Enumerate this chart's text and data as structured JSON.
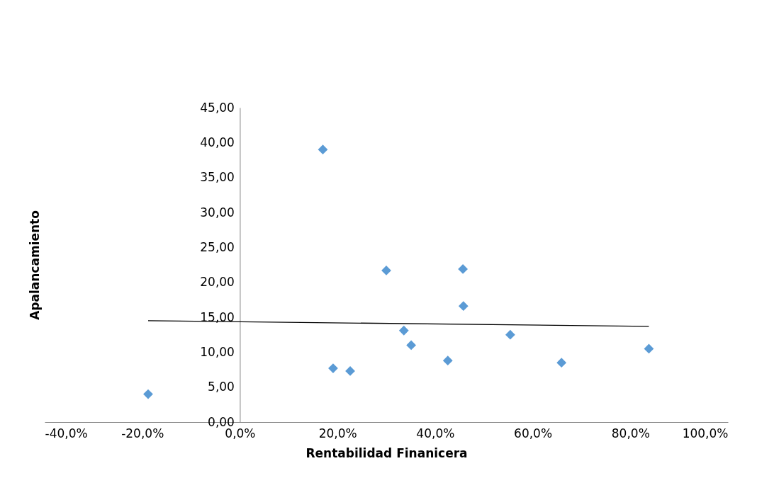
{
  "chart_data": {
    "type": "scatter",
    "xlabel": "Rentabilidad Finanicera",
    "ylabel": "Apalancamiento",
    "xlim": [
      -40,
      100
    ],
    "ylim": [
      0,
      45
    ],
    "xticks": [
      {
        "value": -40,
        "label": "-40,0%"
      },
      {
        "value": -20,
        "label": "-20,0%"
      },
      {
        "value": 0,
        "label": "0,0%"
      },
      {
        "value": 20,
        "label": "20,0%"
      },
      {
        "value": 40,
        "label": "40,0%"
      },
      {
        "value": 60,
        "label": "60,0%"
      },
      {
        "value": 80,
        "label": "80,0%"
      },
      {
        "value": 100,
        "label": "100,0%"
      }
    ],
    "yticks": [
      {
        "value": 0,
        "label": "0,00"
      },
      {
        "value": 5,
        "label": "5,00"
      },
      {
        "value": 10,
        "label": "10,00"
      },
      {
        "value": 15,
        "label": "15,00"
      },
      {
        "value": 20,
        "label": "20,00"
      },
      {
        "value": 25,
        "label": "25,00"
      },
      {
        "value": 30,
        "label": "30,00"
      },
      {
        "value": 35,
        "label": "35,00"
      },
      {
        "value": 40,
        "label": "40,00"
      },
      {
        "value": 45,
        "label": "45,00"
      }
    ],
    "grid": false,
    "legend": false,
    "series": [
      {
        "marker": "diamond",
        "color": "#5b9bd5",
        "x": [
          17.0,
          -18.8,
          19.1,
          22.6,
          30.0,
          33.6,
          35.1,
          42.6,
          45.7,
          45.8,
          55.4,
          65.9,
          83.8
        ],
        "values": [
          39.0,
          4.0,
          7.7,
          7.3,
          21.7,
          13.1,
          11.0,
          8.8,
          21.9,
          16.6,
          12.5,
          8.5,
          10.5
        ]
      },
      {
        "type": "line",
        "marker": "none",
        "color": "#000000",
        "line_style": "solid",
        "x": [
          -18.8,
          83.8
        ],
        "values": [
          14.5,
          13.7
        ]
      }
    ]
  }
}
